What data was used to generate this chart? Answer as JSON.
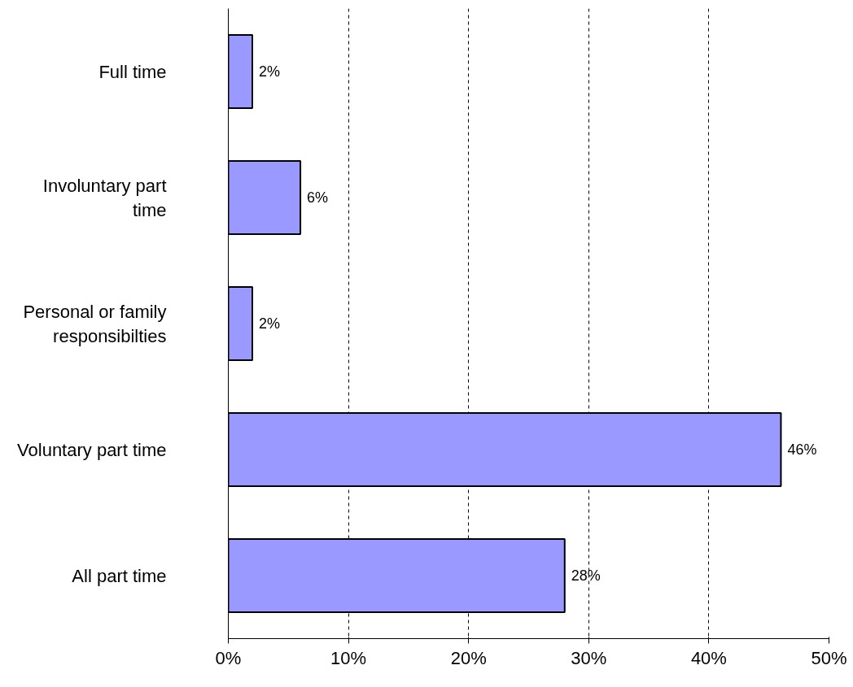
{
  "chart_data": {
    "type": "bar",
    "orientation": "horizontal",
    "categories": [
      "Full time",
      "Involuntary part time",
      "Personal or family responsibilties",
      "Voluntary part time",
      "All part time"
    ],
    "values": [
      2,
      6,
      2,
      46,
      28
    ],
    "value_labels": [
      "2%",
      "6%",
      "2%",
      "46%",
      "28%"
    ],
    "color": "#9999ff",
    "xlim": [
      0,
      50
    ],
    "xticks": [
      {
        "value": 0,
        "label": "0%"
      },
      {
        "value": 10,
        "label": "10%"
      },
      {
        "value": 20,
        "label": "20%"
      },
      {
        "value": 30,
        "label": "30%"
      },
      {
        "value": 40,
        "label": "40%"
      },
      {
        "value": 50,
        "label": "50%"
      }
    ],
    "grid": "x"
  }
}
